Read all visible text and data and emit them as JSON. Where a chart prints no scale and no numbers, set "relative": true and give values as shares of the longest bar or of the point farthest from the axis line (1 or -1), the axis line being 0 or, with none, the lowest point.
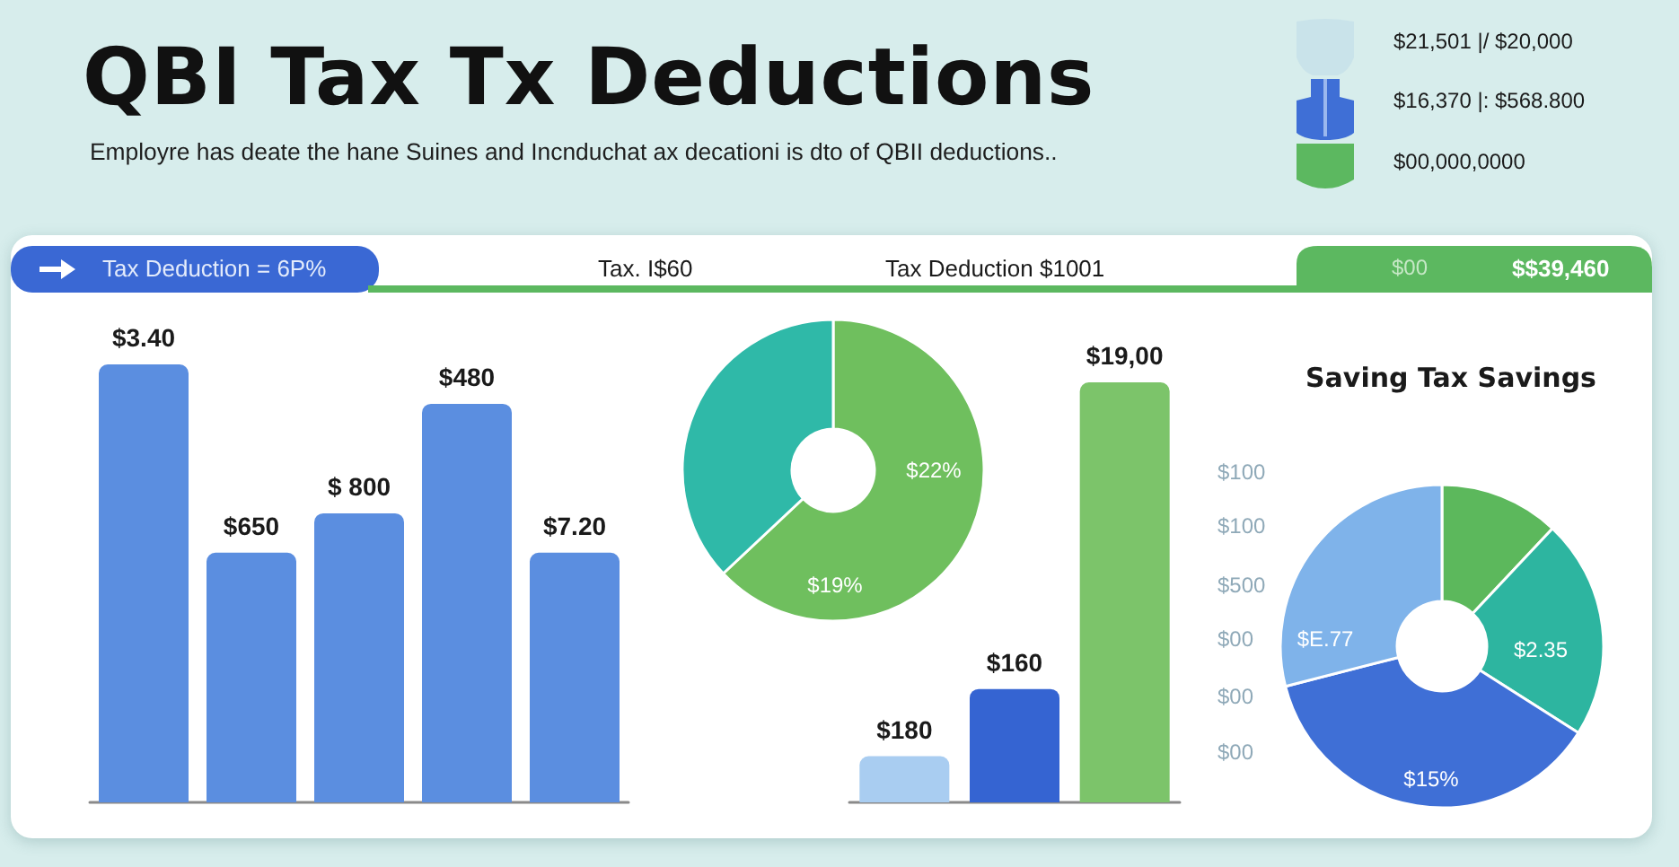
{
  "chart_data": [
    {
      "type": "other",
      "title": "QBI Tax Tx Deductions",
      "subtitle": "Employre has deate the hane Suines and Incnduchat ax decationi is dto of QBII deductions..",
      "annotations": [
        "$21,501 |/ $20,000",
        "$16,370 |: $568.800",
        "$00,000,0000",
        "Tax Deduction = 6P%",
        "Tax. I$60",
        "Tax Deduction $1001",
        "$00",
        "$$39,460"
      ]
    },
    {
      "type": "bar",
      "categories": [
        null,
        null,
        null,
        null,
        null
      ],
      "values": [
        1,
        0.57,
        0.66,
        0.91,
        0.57
      ],
      "relative": true,
      "color": "#5b8ee0",
      "annotations": [
        "$3.40",
        "$650",
        "$ 800",
        "$480",
        "$7.20"
      ]
    },
    {
      "type": "donut",
      "categories": [
        null,
        null
      ],
      "values": [
        63,
        37
      ],
      "colors": [
        "#6fbf5e",
        "#2fb9a8"
      ],
      "annotations": [
        "$22%",
        "$19%"
      ]
    },
    {
      "type": "bar",
      "categories": [
        null,
        null,
        null
      ],
      "values": [
        0.11,
        0.27,
        1
      ],
      "relative": true,
      "colors": [
        "#a9cdf1",
        "#3564d2",
        "#7cc46a"
      ],
      "annotations": [
        "$180",
        "$160",
        "$19,00"
      ]
    },
    {
      "type": "donut",
      "title": "Saving Tax Savings",
      "categories": [
        null,
        null,
        null,
        null
      ],
      "values": [
        12,
        22,
        37,
        29
      ],
      "colors": [
        "#5cb85c",
        "#2db5a0",
        "#3f6fd6",
        "#7fb3ea"
      ],
      "annotations": [
        "$100",
        "$100",
        "$500",
        "$00",
        "$00",
        "$00",
        "$2.35",
        "$15%",
        "$E.77"
      ]
    }
  ]
}
